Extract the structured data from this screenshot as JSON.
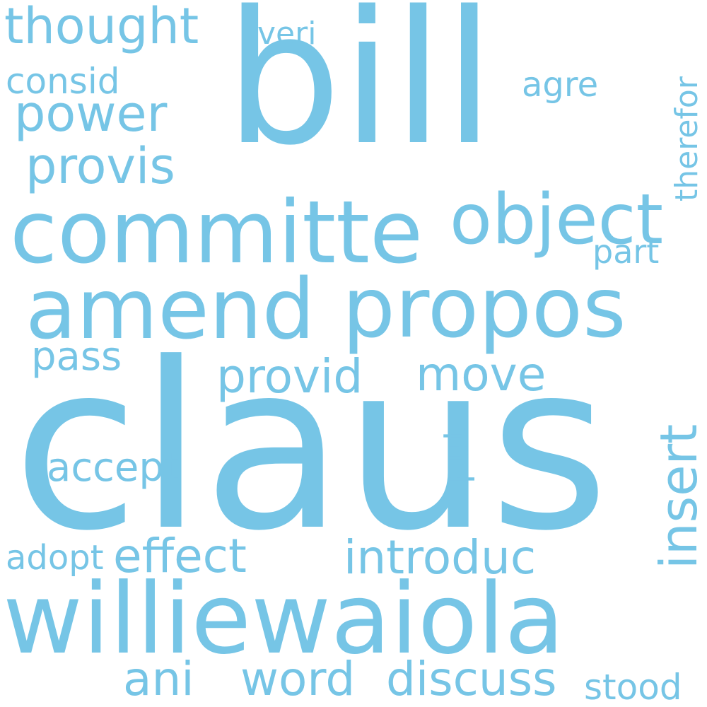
{
  "theme": {
    "background": "#ffffff",
    "word_color": "#76c5e6"
  },
  "words": {
    "bill": "bill",
    "claus": "claus",
    "committe": "committe",
    "propos": "propos",
    "amend": "amend",
    "williewaiola": "williewaiola",
    "object": "object",
    "insert": "insert",
    "thought": "thought",
    "provis": "provis",
    "power": "power",
    "consid": "consid",
    "veri": "veri",
    "agre": "agre",
    "therefor": "therefor",
    "part": "part",
    "pass": "pass",
    "provid": "provid",
    "move": "move",
    "accept": "accept",
    "put": "put",
    "adopt": "adopt",
    "effect": "effect",
    "introduc": "introduc",
    "ani": "ani",
    "word": "word",
    "discuss": "discuss",
    "stood": "stood"
  }
}
